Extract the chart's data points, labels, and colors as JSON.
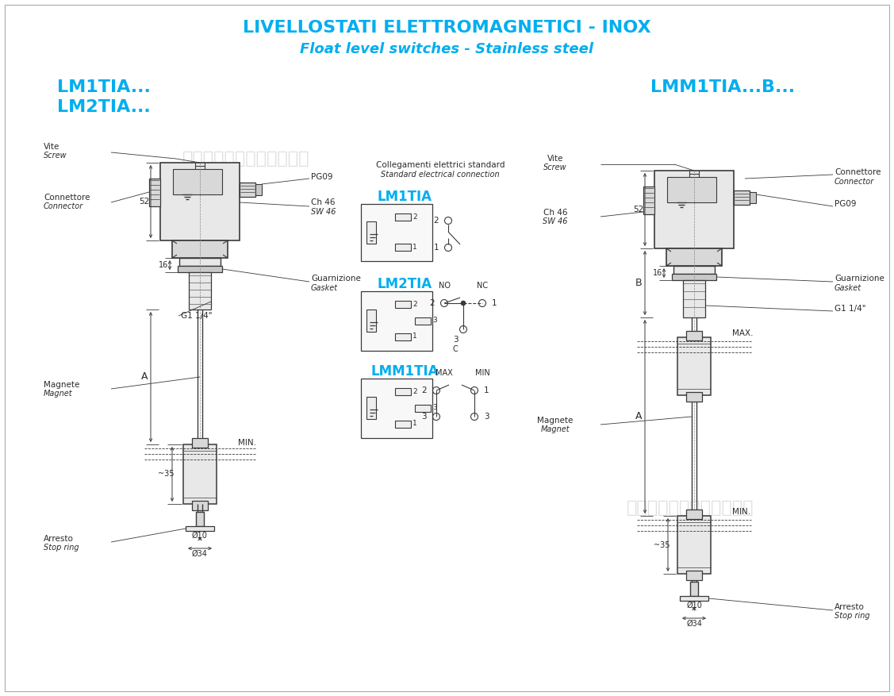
{
  "title_line1": "LIVELLOSTATI ELETTROMAGNETICI - INOX",
  "title_line2": "Float level switches - Stainless steel",
  "watermark1": "苏州知非机电设备有限公司",
  "watermark2": "苏州知非机电设备有限公司",
  "left_model_line1": "LM1TIA...",
  "left_model_line2": "LM2TIA...",
  "right_model": "LMM1TIA...B...",
  "bg_color": "#ffffff",
  "title_color": "#00AEEF",
  "line_color": "#3a3a3a",
  "label_color": "#2a2a2a",
  "model_label_color": "#00AEEF",
  "watermark_color": "#c8c8c8",
  "fill_light": "#e8e8e8",
  "fill_medium": "#d8d8d8",
  "fill_dark": "#c8c8c8"
}
